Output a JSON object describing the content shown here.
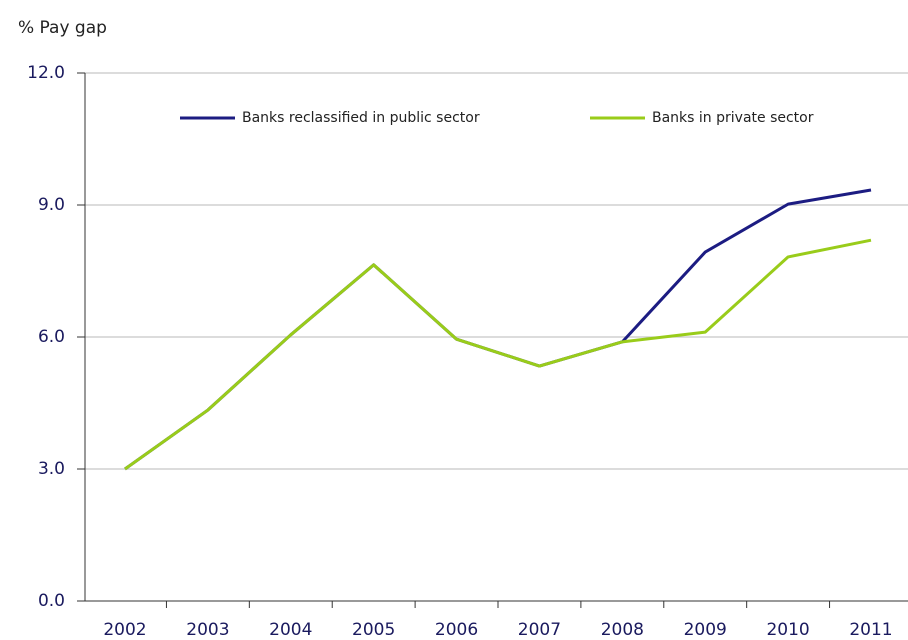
{
  "chart_data": {
    "type": "line",
    "y_label": "% Pay gap",
    "categories": [
      "2002",
      "2003",
      "2004",
      "2005",
      "2006",
      "2007",
      "2008",
      "2009",
      "2010",
      "2011"
    ],
    "series": [
      {
        "name": "Banks reclassified in public sector",
        "color": "#1c1c82",
        "values": [
          3.0,
          4.34,
          6.05,
          7.64,
          5.95,
          5.34,
          5.89,
          7.93,
          9.02,
          9.34
        ]
      },
      {
        "name": "Banks in private sector",
        "color": "#99cc1a",
        "values": [
          3.0,
          4.34,
          6.05,
          7.64,
          5.95,
          5.34,
          5.89,
          6.11,
          7.82,
          8.2
        ]
      }
    ],
    "ylim": [
      0,
      12
    ],
    "yticks": [
      {
        "value": 0,
        "label": "0.0"
      },
      {
        "value": 3,
        "label": "3.0"
      },
      {
        "value": 6,
        "label": "6.0"
      },
      {
        "value": 9,
        "label": "9.0"
      },
      {
        "value": 12,
        "label": "12.0"
      }
    ],
    "grid": true
  }
}
